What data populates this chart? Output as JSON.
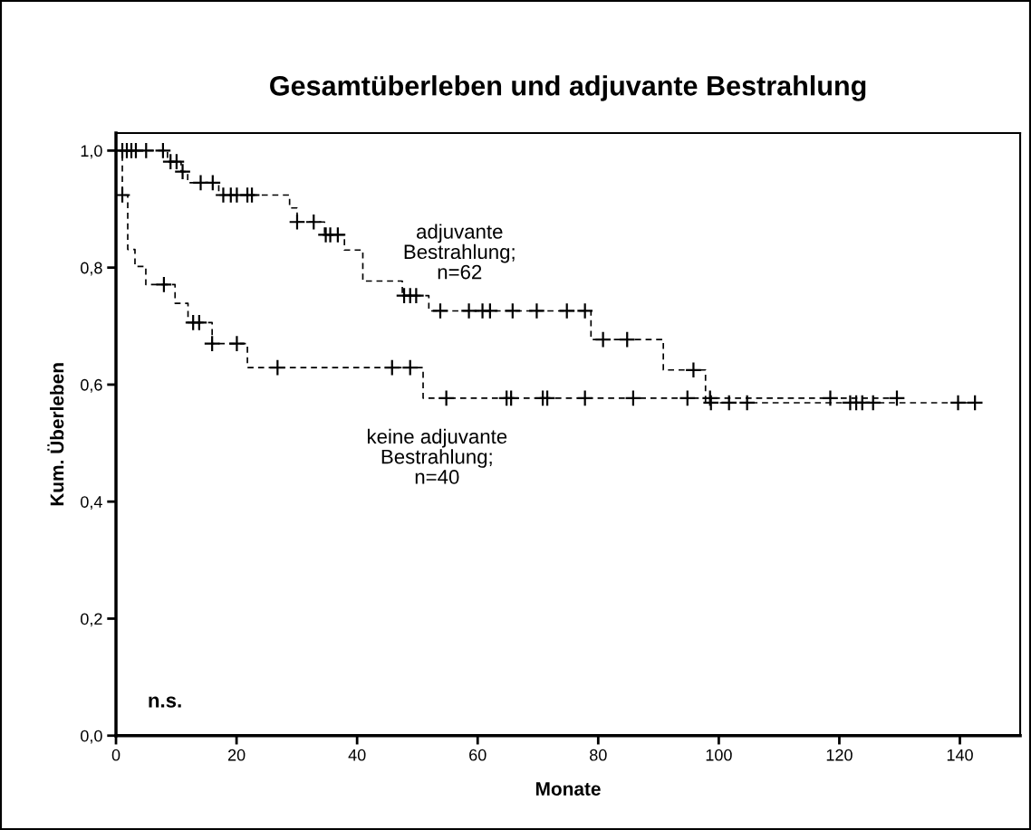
{
  "chart_data": {
    "type": "step",
    "title": "Gesamtüberleben und adjuvante Bestrahlung",
    "xlabel": "Monate",
    "ylabel": "Kum. Überleben",
    "xlim": [
      0,
      150
    ],
    "xticks": [
      0,
      20,
      40,
      60,
      80,
      100,
      120,
      140
    ],
    "ylim": [
      0,
      1.03
    ],
    "yticks": [
      {
        "value": 0,
        "label": "0,0"
      },
      {
        "value": 0.2,
        "label": "0,2"
      },
      {
        "value": 0.4,
        "label": "0,4"
      },
      {
        "value": 0.6,
        "label": "0,6"
      },
      {
        "value": 0.8,
        "label": "0,8"
      },
      {
        "value": 1.0,
        "label": "1,0"
      }
    ],
    "grid": false,
    "legend": false,
    "line_style": "dashed",
    "series": [
      {
        "marker": "none",
        "color": "#000000",
        "x": [
          0,
          8.55,
          10.8,
          11.9,
          17.05,
          28.8,
          30.05,
          34.6,
          37.9,
          40.95,
          47.5,
          51.9,
          78.8,
          90.8,
          97.8,
          142.5
        ],
        "values": [
          1.0,
          0.981,
          0.964,
          0.945,
          0.924,
          0.902,
          0.878,
          0.856,
          0.83,
          0.777,
          0.752,
          0.726,
          0.677,
          0.625,
          0.569,
          0.569
        ]
      },
      {
        "type": "scatter",
        "marker": "cross",
        "color": "#000000",
        "x": [
          1.05,
          1.8,
          2.55,
          3.3,
          5.0,
          7.8,
          9.05,
          10.05,
          11.05,
          14.05,
          16.05,
          17.8,
          19.05,
          20.05,
          21.8,
          22.55,
          30.05,
          32.8,
          34.8,
          35.55,
          36.8,
          47.8,
          48.8,
          49.8,
          53.8,
          58.55,
          60.8,
          62.05,
          65.8,
          69.8,
          74.8,
          77.8,
          80.8,
          84.8,
          95.8,
          98.7,
          101.7,
          104.7,
          121.8,
          122.8,
          123.8,
          125.6,
          139.7,
          142.5
        ],
        "values": [
          1.0,
          1.0,
          1.0,
          1.0,
          1.0,
          1.0,
          0.981,
          0.981,
          0.964,
          0.945,
          0.945,
          0.924,
          0.924,
          0.924,
          0.924,
          0.924,
          0.878,
          0.878,
          0.856,
          0.856,
          0.856,
          0.752,
          0.752,
          0.752,
          0.726,
          0.726,
          0.726,
          0.726,
          0.726,
          0.726,
          0.726,
          0.726,
          0.677,
          0.677,
          0.625,
          0.569,
          0.569,
          0.569,
          0.569,
          0.569,
          0.569,
          0.569,
          0.569,
          0.569
        ]
      },
      {
        "marker": "none",
        "color": "#000000",
        "x": [
          0,
          1.05,
          1.95,
          3.15,
          4.95,
          9.8,
          11.95,
          15.95,
          21.8,
          50.95,
          129.55
        ],
        "values": [
          1.0,
          0.924,
          0.831,
          0.802,
          0.771,
          0.739,
          0.706,
          0.67,
          0.629,
          0.577,
          0.577
        ]
      },
      {
        "type": "scatter",
        "marker": "cross",
        "color": "#000000",
        "x": [
          1.05,
          7.95,
          12.8,
          13.8,
          15.95,
          20.05,
          26.8,
          45.8,
          48.8,
          54.8,
          64.8,
          65.55,
          70.8,
          71.55,
          77.8,
          85.8,
          94.8,
          98.55,
          118.5,
          129.55
        ],
        "values": [
          0.924,
          0.771,
          0.706,
          0.706,
          0.67,
          0.67,
          0.629,
          0.629,
          0.629,
          0.577,
          0.577,
          0.577,
          0.577,
          0.577,
          0.577,
          0.577,
          0.577,
          0.577,
          0.577,
          0.577
        ]
      }
    ],
    "annotations": [
      "adjuvante\nBestrahlung;\nn=62",
      "keine adjuvante\nBestrahlung;\nn=40",
      "n.s."
    ]
  }
}
